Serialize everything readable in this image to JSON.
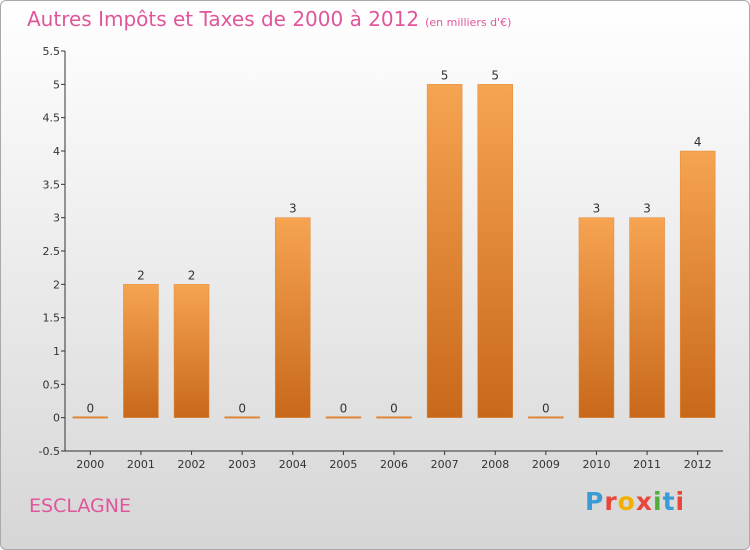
{
  "header": {
    "title": "Autres Impôts et Taxes de 2000 à 2012",
    "unit": "(en milliers d'€)"
  },
  "footer": {
    "location": "ESCLAGNE",
    "logo_letters": [
      "P",
      "r",
      "o",
      "x",
      "i",
      "t",
      "i"
    ]
  },
  "colors": {
    "title": "#e0569a",
    "bar_top": "#f6a452",
    "bar_bottom": "#c8681a",
    "logo": [
      "#3a9bd5",
      "#e8463c",
      "#f4b000",
      "#e8463c",
      "#4fae3c",
      "#3a9bd5",
      "#e8463c"
    ]
  },
  "chart_data": {
    "type": "bar",
    "categories": [
      "2000",
      "2001",
      "2002",
      "2003",
      "2004",
      "2005",
      "2006",
      "2007",
      "2008",
      "2009",
      "2010",
      "2011",
      "2012"
    ],
    "values": [
      0,
      2,
      2,
      0,
      3,
      0,
      0,
      5,
      5,
      0,
      3,
      3,
      4
    ],
    "data_labels": [
      "0",
      "2",
      "2",
      "0",
      "3",
      "0",
      "0",
      "5",
      "5",
      "0",
      "3",
      "3",
      "4"
    ],
    "y_ticks": [
      -0.5,
      0,
      0.5,
      1,
      1.5,
      2,
      2.5,
      3,
      3.5,
      4,
      4.5,
      5,
      5.5
    ],
    "y_tick_labels": [
      "-0.5",
      "0",
      "0.5",
      "1",
      "1.5",
      "2",
      "2.5",
      "3",
      "3.5",
      "4",
      "4.5",
      "5",
      "5.5"
    ],
    "ylim": [
      -0.5,
      5.5
    ],
    "grid": false,
    "legend": "none"
  }
}
